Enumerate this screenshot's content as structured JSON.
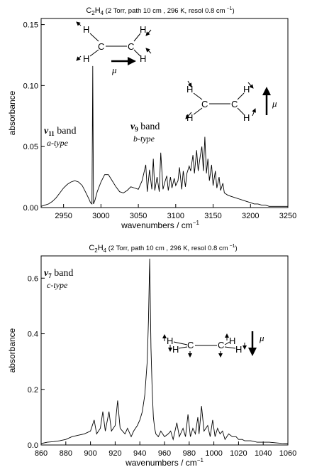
{
  "chart_data": [
    {
      "type": "line",
      "title_main": "C",
      "title_sub1": "2",
      "title_mid": "H",
      "title_sub2": "4",
      "title_rest": " (2 Torr, path 10 cm , 296 K, resol 0.8 cm",
      "title_sup": " −1",
      "title_close": ")",
      "xlabel": "wavenumbers / cm",
      "xlabel_sup": "−1",
      "ylabel": "absorbance",
      "xlim": [
        2920,
        3250
      ],
      "ylim": [
        0,
        0.155
      ],
      "xticks": [
        2950,
        3000,
        3050,
        3100,
        3150,
        3200,
        3250
      ],
      "yticks": [
        0.0,
        0.05,
        0.1,
        0.15
      ],
      "ytick_labels": [
        "0.00",
        "0.05",
        "0.10",
        "0.15"
      ],
      "grid": false,
      "bands": [
        {
          "symbol": "ν",
          "sub": "11",
          "word": " band",
          "type_label": "a-type"
        },
        {
          "symbol": "ν",
          "sub": "9",
          "word": " band",
          "type_label": "b-type"
        }
      ],
      "mu_label": "μ",
      "series": [
        {
          "x": [
            2920,
            2925,
            2930,
            2935,
            2940,
            2945,
            2950,
            2955,
            2960,
            2965,
            2970,
            2975,
            2980,
            2984,
            2986,
            2988,
            2989,
            2990,
            2992,
            2995,
            3000,
            3005,
            3010,
            3015,
            3020,
            3025,
            3030,
            3035,
            3040,
            3045,
            3050,
            3055,
            3060,
            3062,
            3065,
            3068,
            3070,
            3072,
            3075,
            3078,
            3080,
            3083,
            3085,
            3088,
            3090,
            3093,
            3095,
            3098,
            3100,
            3103,
            3105,
            3108,
            3110,
            3113,
            3115,
            3118,
            3120,
            3123,
            3125,
            3128,
            3130,
            3133,
            3135,
            3137,
            3139,
            3141,
            3143,
            3145,
            3148,
            3150,
            3153,
            3155,
            3158,
            3160,
            3163,
            3165,
            3170,
            3175,
            3180,
            3185,
            3190,
            3195,
            3200,
            3205,
            3210,
            3215,
            3220,
            3225,
            3230,
            3240,
            3250
          ],
          "y": [
            0.001,
            0.002,
            0.003,
            0.005,
            0.008,
            0.012,
            0.016,
            0.019,
            0.021,
            0.022,
            0.021,
            0.018,
            0.012,
            0.007,
            0.004,
            0.003,
            0.116,
            0.003,
            0.006,
            0.013,
            0.021,
            0.027,
            0.027,
            0.022,
            0.017,
            0.013,
            0.012,
            0.014,
            0.017,
            0.016,
            0.015,
            0.022,
            0.035,
            0.013,
            0.031,
            0.015,
            0.04,
            0.014,
            0.025,
            0.013,
            0.045,
            0.015,
            0.02,
            0.026,
            0.014,
            0.025,
            0.016,
            0.024,
            0.018,
            0.022,
            0.033,
            0.015,
            0.03,
            0.017,
            0.028,
            0.034,
            0.03,
            0.043,
            0.028,
            0.047,
            0.03,
            0.043,
            0.05,
            0.03,
            0.058,
            0.028,
            0.04,
            0.022,
            0.035,
            0.018,
            0.03,
            0.016,
            0.025,
            0.014,
            0.02,
            0.012,
            0.01,
            0.009,
            0.008,
            0.007,
            0.006,
            0.005,
            0.004,
            0.003,
            0.003,
            0.002,
            0.002,
            0.001,
            0.001,
            0.001,
            0.001
          ]
        }
      ]
    },
    {
      "type": "line",
      "title_main": "C",
      "title_sub1": "2",
      "title_mid": "H",
      "title_sub2": "4",
      "title_rest": " (2 Torr, path 10 cm , 296 K, resol 0.8 cm",
      "title_sup": " −1",
      "title_close": ")",
      "xlabel": "wavenumbers / cm",
      "xlabel_sup": "−1",
      "ylabel": "absorbance",
      "xlim": [
        860,
        1060
      ],
      "ylim": [
        0,
        0.68
      ],
      "xticks": [
        860,
        880,
        900,
        920,
        940,
        960,
        980,
        1000,
        1020,
        1040,
        1060
      ],
      "yticks": [
        0.0,
        0.2,
        0.4,
        0.6
      ],
      "ytick_labels": [
        "0.0",
        "0.2",
        "0.4",
        "0.6"
      ],
      "grid": false,
      "bands": [
        {
          "symbol": "ν",
          "sub": "7",
          "word": " band",
          "type_label": "c-type"
        }
      ],
      "mu_label": "μ",
      "series": [
        {
          "x": [
            860,
            865,
            870,
            875,
            880,
            885,
            890,
            895,
            900,
            903,
            905,
            908,
            910,
            912,
            915,
            917,
            920,
            922,
            924,
            926,
            928,
            930,
            933,
            935,
            938,
            940,
            942,
            944,
            946,
            947,
            948,
            949,
            950,
            951,
            952,
            953,
            955,
            957,
            960,
            963,
            965,
            967,
            970,
            972,
            975,
            977,
            979,
            981,
            983,
            985,
            987,
            988,
            990,
            992,
            995,
            997,
            999,
            1001,
            1003,
            1005,
            1007,
            1009,
            1012,
            1015,
            1018,
            1020,
            1023,
            1025,
            1030,
            1035,
            1040,
            1045,
            1050,
            1055,
            1060
          ],
          "y": [
            0.005,
            0.01,
            0.012,
            0.015,
            0.02,
            0.03,
            0.035,
            0.04,
            0.05,
            0.09,
            0.04,
            0.06,
            0.12,
            0.05,
            0.12,
            0.05,
            0.07,
            0.16,
            0.06,
            0.05,
            0.04,
            0.06,
            0.03,
            0.05,
            0.07,
            0.09,
            0.12,
            0.18,
            0.3,
            0.45,
            0.67,
            0.35,
            0.2,
            0.1,
            0.06,
            0.04,
            0.03,
            0.05,
            0.03,
            0.04,
            0.05,
            0.02,
            0.08,
            0.03,
            0.06,
            0.03,
            0.11,
            0.03,
            0.06,
            0.04,
            0.1,
            0.04,
            0.14,
            0.05,
            0.07,
            0.03,
            0.09,
            0.03,
            0.06,
            0.04,
            0.05,
            0.02,
            0.04,
            0.03,
            0.03,
            0.02,
            0.02,
            0.015,
            0.015,
            0.01,
            0.01,
            0.01,
            0.008,
            0.006,
            0.005
          ]
        }
      ]
    }
  ],
  "molecule": {
    "atom_c": "C",
    "atom_h": "H"
  }
}
